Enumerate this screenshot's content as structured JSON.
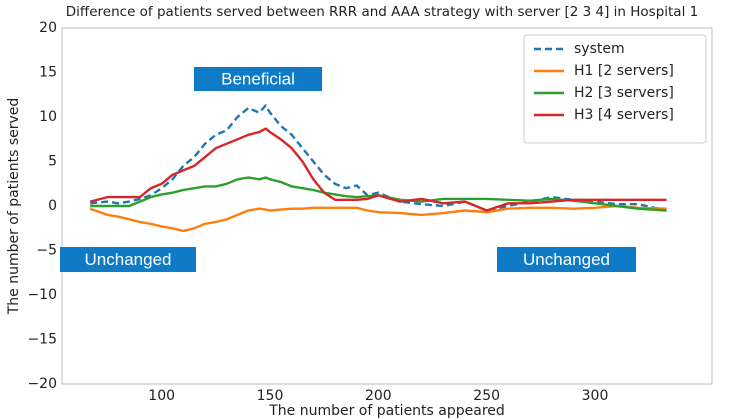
{
  "chart_data": {
    "type": "line",
    "title": "Difference of patients served between RRR and AAA strategy with server [2 3 4] in Hospital 1",
    "xlabel": "The number of patients appeared",
    "ylabel": "The number of patients served",
    "x": [
      67,
      75,
      80,
      85,
      90,
      95,
      100,
      105,
      110,
      115,
      120,
      125,
      130,
      135,
      140,
      145,
      148,
      150,
      155,
      160,
      165,
      170,
      175,
      180,
      185,
      190,
      195,
      200,
      210,
      220,
      230,
      240,
      250,
      260,
      270,
      280,
      290,
      300,
      310,
      320,
      333
    ],
    "series": [
      {
        "name": "system",
        "color": "#1f77b4",
        "linestyle": "dashed",
        "values": [
          0.3,
          0.5,
          0.3,
          0.5,
          0.8,
          1.2,
          2,
          3,
          4.5,
          5.5,
          7,
          8,
          8.5,
          10,
          11,
          10.5,
          11.3,
          10.5,
          9,
          8,
          6.5,
          5,
          3.5,
          2.5,
          2,
          2.3,
          1.2,
          1.5,
          0.5,
          0.2,
          0,
          0.5,
          -0.5,
          0,
          0.5,
          1,
          0.7,
          0.5,
          0.2,
          0.2,
          -0.5
        ]
      },
      {
        "name": "H1 [2 servers]",
        "color": "#ff7f0e",
        "linestyle": "solid",
        "values": [
          -0.3,
          -1,
          -1.2,
          -1.5,
          -1.8,
          -2,
          -2.3,
          -2.5,
          -2.8,
          -2.5,
          -2,
          -1.8,
          -1.5,
          -1,
          -0.5,
          -0.3,
          -0.4,
          -0.5,
          -0.4,
          -0.3,
          -0.3,
          -0.2,
          -0.2,
          -0.2,
          -0.2,
          -0.2,
          -0.5,
          -0.7,
          -0.8,
          -1,
          -0.8,
          -0.5,
          -0.7,
          -0.3,
          -0.2,
          -0.2,
          -0.3,
          -0.2,
          0,
          -0.2,
          -0.3
        ]
      },
      {
        "name": "H2 [3 servers]",
        "color": "#2ca02c",
        "linestyle": "solid",
        "values": [
          0,
          0,
          0,
          0,
          0.5,
          1,
          1.3,
          1.5,
          1.8,
          2,
          2.2,
          2.2,
          2.5,
          3,
          3.2,
          3,
          3.2,
          3,
          2.7,
          2.2,
          2,
          1.8,
          1.5,
          1.3,
          1.1,
          1,
          1.1,
          1.2,
          0.7,
          0.5,
          0.8,
          0.8,
          0.8,
          0.7,
          0.6,
          0.8,
          0.6,
          0.3,
          0,
          -0.3,
          -0.5
        ]
      },
      {
        "name": "H3 [4 servers]",
        "color": "#d62728",
        "linestyle": "solid",
        "values": [
          0.5,
          1,
          1,
          1,
          1,
          2,
          2.5,
          3.5,
          4,
          4.5,
          5.5,
          6.5,
          7,
          7.5,
          8,
          8.3,
          8.7,
          8.3,
          7.5,
          6.5,
          5,
          3,
          1.5,
          0.7,
          0.7,
          0.7,
          0.8,
          1.2,
          0.5,
          0.8,
          0.3,
          0.5,
          -0.5,
          0.3,
          0.3,
          0.5,
          0.7,
          0.7,
          0.7,
          0.7,
          0.7
        ]
      }
    ],
    "xlim": [
      54,
      354
    ],
    "ylim": [
      -20,
      20
    ],
    "xticks": [
      100,
      150,
      200,
      250,
      300
    ],
    "yticks": [
      {
        "value": -20,
        "label": "−20"
      },
      {
        "value": -15,
        "label": "−15"
      },
      {
        "value": -10,
        "label": "−10"
      },
      {
        "value": -5,
        "label": "−5"
      },
      0,
      5,
      10,
      15,
      20
    ],
    "grid": true,
    "legend": "upper right",
    "annotations": [
      {
        "text": "Beneficial",
        "color": "#0f7ac6"
      },
      {
        "text": "Unchanged",
        "color": "#0f7ac6"
      },
      {
        "text": "Unchanged",
        "color": "#0f7ac6"
      }
    ]
  }
}
